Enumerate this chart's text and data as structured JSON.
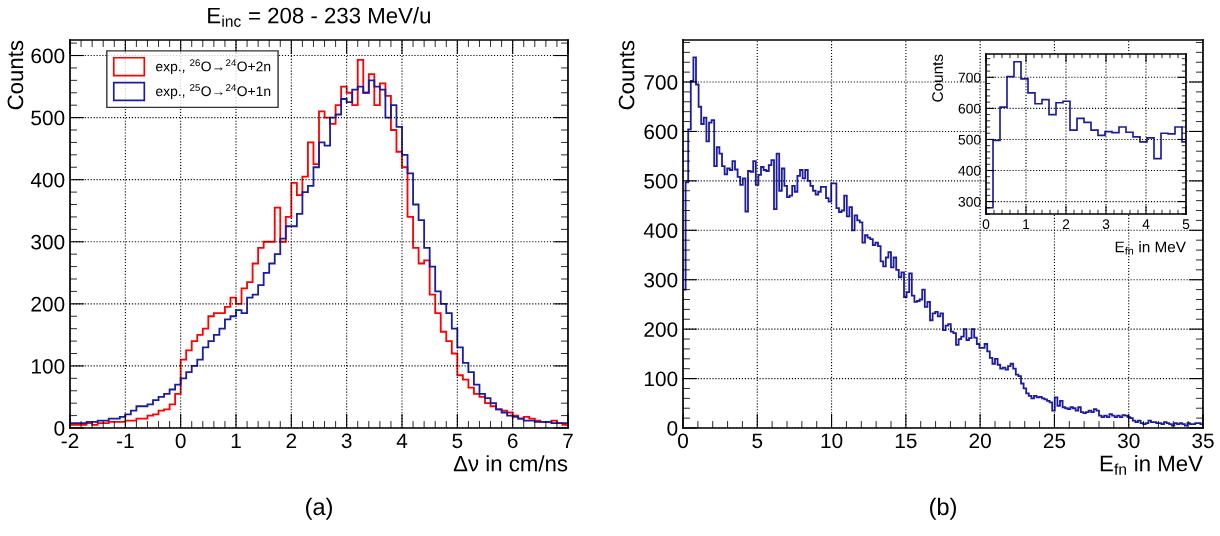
{
  "chart_data": [
    {
      "type": "histogram",
      "title": "E$_{inc}$ = 208 - 233 MeV/u",
      "xlabel": "Δν in cm/ns",
      "ylabel": "Counts",
      "bins": [
        -2,
        -1.9,
        -1.8,
        -1.7,
        -1.6,
        -1.5,
        -1.4,
        -1.3,
        -1.2,
        -1.1,
        -1,
        -0.9,
        -0.8,
        -0.7,
        -0.6,
        -0.5,
        -0.4,
        -0.3,
        -0.2,
        -0.1,
        0,
        0.1,
        0.2,
        0.3,
        0.4,
        0.5,
        0.6,
        0.7,
        0.8,
        0.9,
        1,
        1.1,
        1.2,
        1.3,
        1.4,
        1.5,
        1.6,
        1.7,
        1.8,
        1.9,
        2,
        2.1,
        2.2,
        2.3,
        2.4,
        2.5,
        2.6,
        2.7,
        2.8,
        2.9,
        3,
        3.1,
        3.2,
        3.3,
        3.4,
        3.5,
        3.6,
        3.7,
        3.8,
        3.9,
        4,
        4.1,
        4.2,
        4.3,
        4.4,
        4.5,
        4.6,
        4.7,
        4.8,
        4.9,
        5,
        5.1,
        5.2,
        5.3,
        5.4,
        5.5,
        5.6,
        5.7,
        5.8,
        5.9,
        6,
        6.1,
        6.2,
        6.3,
        6.4,
        6.5,
        6.6,
        6.7,
        6.8,
        6.9,
        7
      ],
      "series": [
        {
          "name": "exp., $^{26}$O→$^{24}$O+2n",
          "color": "#ff0000",
          "values": [
            5,
            5,
            5,
            8,
            5,
            8,
            8,
            10,
            10,
            10,
            12,
            12,
            15,
            15,
            20,
            22,
            28,
            30,
            38,
            55,
            110,
            125,
            140,
            150,
            160,
            180,
            185,
            185,
            195,
            210,
            200,
            225,
            235,
            265,
            290,
            300,
            300,
            355,
            300,
            340,
            395,
            375,
            405,
            460,
            425,
            510,
            500,
            490,
            520,
            550,
            540,
            520,
            593,
            540,
            570,
            520,
            555,
            535,
            480,
            445,
            420,
            340,
            290,
            265,
            270,
            215,
            185,
            155,
            140,
            120,
            85,
            78,
            65,
            55,
            50,
            40,
            35,
            30,
            28,
            25,
            20,
            15,
            18,
            15,
            12,
            10,
            10,
            12,
            8,
            5
          ]
        },
        {
          "name": "exp., $^{25}$O→$^{24}$O+1n",
          "color": "#1c1ca0",
          "values": [
            8,
            8,
            8,
            10,
            10,
            12,
            12,
            15,
            15,
            18,
            22,
            28,
            35,
            35,
            38,
            45,
            50,
            55,
            62,
            70,
            80,
            90,
            100,
            110,
            130,
            140,
            150,
            160,
            175,
            180,
            190,
            185,
            210,
            215,
            230,
            250,
            265,
            280,
            305,
            325,
            325,
            345,
            380,
            390,
            420,
            460,
            455,
            500,
            505,
            530,
            525,
            545,
            550,
            540,
            560,
            550,
            545,
            500,
            520,
            485,
            440,
            410,
            360,
            335,
            290,
            260,
            220,
            200,
            185,
            160,
            130,
            105,
            90,
            70,
            55,
            48,
            40,
            30,
            25,
            20,
            18,
            15,
            12,
            12,
            10,
            10,
            10,
            8,
            8,
            8
          ]
        }
      ],
      "xlim": [
        -2,
        7
      ],
      "ylim": [
        0,
        625
      ],
      "xticks": [
        -2,
        -1,
        0,
        1,
        2,
        3,
        4,
        5,
        6,
        7
      ],
      "yticks": [
        0,
        100,
        200,
        300,
        400,
        500,
        600
      ],
      "grid": true,
      "legend": "top left",
      "annotations": [
        "(a)"
      ]
    },
    {
      "type": "histogram",
      "xlabel": "E$_{fn}$ in MeV",
      "ylabel": "Counts",
      "bins": [
        0,
        0.175,
        0.35,
        0.525,
        0.7,
        0.875,
        1.05,
        1.225,
        1.4,
        1.575,
        1.75,
        1.925,
        2.1,
        2.275,
        2.45,
        2.625,
        2.8,
        2.975,
        3.15,
        3.325,
        3.5,
        3.675,
        3.85,
        4.025,
        4.2,
        4.375,
        4.55,
        4.725,
        4.9,
        5.075,
        5.25,
        5.425,
        5.6,
        5.775,
        5.95,
        6.125,
        6.3,
        6.475,
        6.65,
        6.825,
        7,
        7.175,
        7.35,
        7.525,
        7.7,
        7.875,
        8.05,
        8.225,
        8.4,
        8.575,
        8.75,
        8.925,
        9.1,
        9.275,
        9.45,
        9.625,
        9.8,
        9.975,
        10.15,
        10.325,
        10.5,
        10.675,
        10.85,
        11.025,
        11.2,
        11.375,
        11.55,
        11.725,
        11.9,
        12.075,
        12.25,
        12.425,
        12.6,
        12.775,
        12.95,
        13.125,
        13.3,
        13.475,
        13.65,
        13.825,
        14,
        14.175,
        14.35,
        14.525,
        14.7,
        14.875,
        15.05,
        15.225,
        15.4,
        15.575,
        15.75,
        15.925,
        16.1,
        16.275,
        16.45,
        16.625,
        16.8,
        16.975,
        17.15,
        17.325,
        17.5,
        17.675,
        17.85,
        18.025,
        18.2,
        18.375,
        18.55,
        18.725,
        18.9,
        19.075,
        19.25,
        19.425,
        19.6,
        19.775,
        19.95,
        20.125,
        20.3,
        20.475,
        20.65,
        20.825,
        21,
        21.175,
        21.35,
        21.525,
        21.7,
        21.875,
        22.05,
        22.225,
        22.4,
        22.575,
        22.75,
        22.925,
        23.1,
        23.275,
        23.45,
        23.625,
        23.8,
        23.975,
        24.15,
        24.325,
        24.5,
        24.675,
        24.85,
        25.025,
        25.2,
        25.375,
        25.55,
        25.725,
        25.9,
        26.075,
        26.25,
        26.425,
        26.6,
        26.775,
        26.95,
        27.125,
        27.3,
        27.475,
        27.65,
        27.825,
        28,
        28.175,
        28.35,
        28.525,
        28.7,
        28.875,
        29.05,
        29.225,
        29.4,
        29.575,
        29.75,
        29.925,
        30.1,
        30.275,
        30.45,
        30.625,
        30.8,
        30.975,
        31.15,
        31.325,
        31.5,
        31.675,
        31.85,
        32.025,
        32.2,
        32.375,
        32.55,
        32.725,
        32.9,
        33.075,
        33.25,
        33.425,
        33.6,
        33.775,
        33.95,
        34.125,
        34.3,
        34.475,
        34.65,
        34.825,
        35
      ],
      "series": [
        {
          "color": "#1c1ca0",
          "values": [
            280,
            497,
            604,
            702,
            750,
            695,
            650,
            615,
            628,
            580,
            618,
            623,
            530,
            568,
            555,
            530,
            513,
            525,
            522,
            540,
            523,
            508,
            492,
            505,
            438,
            520,
            518,
            540,
            492,
            512,
            528,
            522,
            520,
            532,
            542,
            443,
            555,
            480,
            525,
            490,
            467,
            470,
            490,
            478,
            510,
            522,
            505,
            522,
            500,
            490,
            480,
            472,
            478,
            488,
            488,
            465,
            458,
            495,
            495,
            445,
            437,
            440,
            470,
            428,
            447,
            400,
            430,
            420,
            416,
            375,
            390,
            385,
            382,
            370,
            375,
            368,
            337,
            327,
            345,
            356,
            325,
            345,
            320,
            305,
            315,
            265,
            275,
            313,
            268,
            255,
            257,
            260,
            280,
            245,
            255,
            218,
            232,
            235,
            226,
            232,
            198,
            207,
            210,
            195,
            192,
            168,
            180,
            185,
            200,
            178,
            182,
            200,
            183,
            170,
            162,
            162,
            170,
            155,
            142,
            130,
            140,
            128,
            120,
            122,
            118,
            125,
            130,
            120,
            108,
            105,
            90,
            80,
            70,
            65,
            60,
            65,
            62,
            63,
            60,
            58,
            55,
            52,
            35,
            62,
            45,
            55,
            42,
            40,
            38,
            42,
            40,
            35,
            42,
            32,
            30,
            32,
            35,
            32,
            38,
            35,
            25,
            22,
            25,
            22,
            28,
            25,
            22,
            25,
            22,
            26,
            25,
            22,
            20,
            15,
            12,
            15,
            10,
            8,
            10,
            15,
            12,
            12,
            10,
            10,
            8,
            12,
            10,
            8,
            5,
            10,
            8,
            10,
            8,
            5,
            10,
            8,
            8,
            10,
            10,
            8
          ]
        }
      ],
      "xlim": [
        0,
        35
      ],
      "ylim": [
        0,
        785
      ],
      "xticks": [
        0,
        5,
        10,
        15,
        20,
        25,
        30,
        35
      ],
      "yticks": [
        0,
        100,
        200,
        300,
        400,
        500,
        600,
        700
      ],
      "grid": true,
      "annotations": [
        "(b)"
      ]
    },
    {
      "type": "histogram",
      "xlabel": "E$_{fn}$ in MeV",
      "ylabel": "Counts",
      "bins": [
        0,
        0.175,
        0.35,
        0.525,
        0.7,
        0.875,
        1.05,
        1.225,
        1.4,
        1.575,
        1.75,
        1.925,
        2.1,
        2.275,
        2.45,
        2.625,
        2.8,
        2.975,
        3.15,
        3.325,
        3.5,
        3.675,
        3.85,
        4.025,
        4.2,
        4.375,
        4.55,
        4.725,
        4.9,
        5
      ],
      "series": [
        {
          "color": "#1c1ca0",
          "values": [
            280,
            497,
            604,
            702,
            750,
            695,
            650,
            615,
            628,
            580,
            618,
            623,
            530,
            568,
            555,
            530,
            513,
            525,
            522,
            540,
            523,
            508,
            492,
            505,
            438,
            520,
            518,
            540,
            492
          ]
        }
      ],
      "xlim": [
        0,
        5
      ],
      "ylim": [
        260,
        775
      ],
      "xticks": [
        0,
        1,
        2,
        3,
        4,
        5
      ],
      "yticks": [
        300,
        400,
        500,
        600,
        700
      ],
      "grid": true
    }
  ]
}
